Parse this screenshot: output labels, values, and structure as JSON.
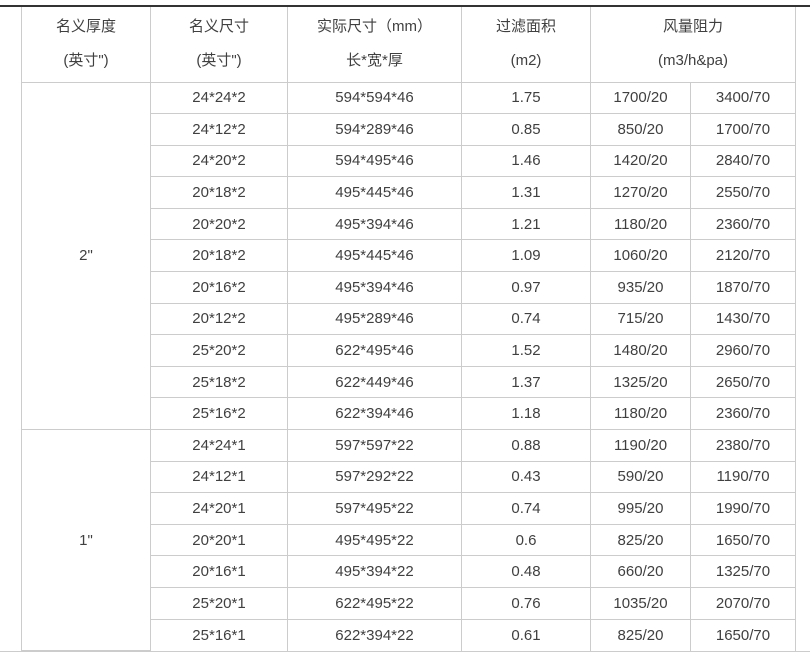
{
  "theme": {
    "background": "#ffffff",
    "top_rule_color": "#333333",
    "border_color": "#cccccc",
    "text_color": "#404040"
  },
  "table": {
    "headers": {
      "nominal_thickness": {
        "line1": "名义厚度",
        "line2": "(英寸\")"
      },
      "nominal_size": {
        "line1": "名义尺寸",
        "line2": "(英寸\")"
      },
      "actual_size": {
        "line1": "实际尺寸（mm）",
        "line2": "长*宽*厚"
      },
      "filter_area": {
        "line1": "过滤面积",
        "line2": "(m2)"
      },
      "airflow_resistance": {
        "line1": "风量阻力",
        "line2": "(m3/h&pa)"
      }
    },
    "groups": [
      {
        "thickness": "2\"",
        "rows": [
          [
            "24*24*2",
            "594*594*46",
            "1.75",
            "1700/20",
            "3400/70"
          ],
          [
            "24*12*2",
            "594*289*46",
            "0.85",
            "850/20",
            "1700/70"
          ],
          [
            "24*20*2",
            "594*495*46",
            "1.46",
            "1420/20",
            "2840/70"
          ],
          [
            "20*18*2",
            "495*445*46",
            "1.31",
            "1270/20",
            "2550/70"
          ],
          [
            "20*20*2",
            "495*394*46",
            "1.21",
            "1180/20",
            "2360/70"
          ],
          [
            "20*18*2",
            "495*445*46",
            "1.09",
            "1060/20",
            "2120/70"
          ],
          [
            "20*16*2",
            "495*394*46",
            "0.97",
            "935/20",
            "1870/70"
          ],
          [
            "20*12*2",
            "495*289*46",
            "0.74",
            "715/20",
            "1430/70"
          ],
          [
            "25*20*2",
            "622*495*46",
            "1.52",
            "1480/20",
            "2960/70"
          ],
          [
            "25*18*2",
            "622*449*46",
            "1.37",
            "1325/20",
            "2650/70"
          ],
          [
            "25*16*2",
            "622*394*46",
            "1.18",
            "1180/20",
            "2360/70"
          ]
        ]
      },
      {
        "thickness": "1\"",
        "rows": [
          [
            "24*24*1",
            "597*597*22",
            "0.88",
            "1190/20",
            "2380/70"
          ],
          [
            "24*12*1",
            "597*292*22",
            "0.43",
            "590/20",
            "1190/70"
          ],
          [
            "24*20*1",
            "597*495*22",
            "0.74",
            "995/20",
            "1990/70"
          ],
          [
            "20*20*1",
            "495*495*22",
            "0.6",
            "825/20",
            "1650/70"
          ],
          [
            "20*16*1",
            "495*394*22",
            "0.48",
            "660/20",
            "1325/70"
          ],
          [
            "25*20*1",
            "622*495*22",
            "0.76",
            "1035/20",
            "2070/70"
          ],
          [
            "25*16*1",
            "622*394*22",
            "0.61",
            "825/20",
            "1650/70"
          ]
        ]
      }
    ]
  }
}
